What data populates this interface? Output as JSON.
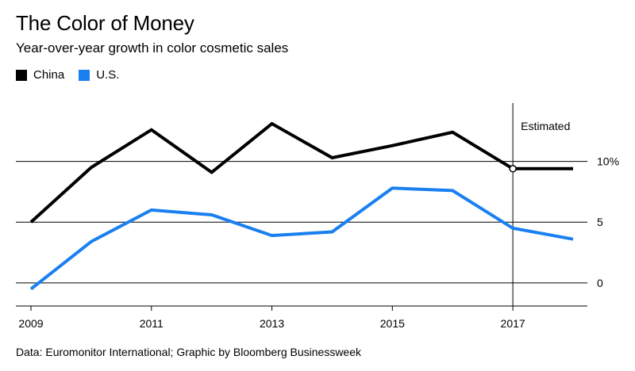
{
  "chart_data": {
    "type": "line",
    "title": "The Color of Money",
    "subtitle": "Year-over-year growth in color cosmetic sales",
    "x": [
      2009,
      2010,
      2011,
      2012,
      2013,
      2014,
      2015,
      2016,
      2017,
      2018
    ],
    "x_tick_labels": [
      "2009",
      "2011",
      "2013",
      "2015",
      "2017"
    ],
    "x_ticks": [
      2009,
      2011,
      2013,
      2015,
      2017
    ],
    "y_tick_labels": [
      "0",
      "5",
      "10%"
    ],
    "y_ticks": [
      0,
      5,
      10
    ],
    "xlim": [
      2009,
      2018.7
    ],
    "ylim": [
      -1.9,
      14.8
    ],
    "grid": "horizontal",
    "legend_position": "top-left",
    "series": [
      {
        "name": "China",
        "color": "#000000",
        "values": [
          5.0,
          9.5,
          12.6,
          9.1,
          13.1,
          10.3,
          11.3,
          12.4,
          9.4,
          9.4
        ]
      },
      {
        "name": "U.S.",
        "color": "#1a7ff0",
        "values": [
          -0.5,
          3.4,
          6.0,
          5.6,
          3.9,
          4.2,
          7.8,
          7.6,
          4.5,
          3.6
        ]
      }
    ],
    "annotation": {
      "text": "Estimated",
      "x": 2017
    },
    "source": "Data: Euromonitor International; Graphic by Bloomberg Businessweek"
  }
}
